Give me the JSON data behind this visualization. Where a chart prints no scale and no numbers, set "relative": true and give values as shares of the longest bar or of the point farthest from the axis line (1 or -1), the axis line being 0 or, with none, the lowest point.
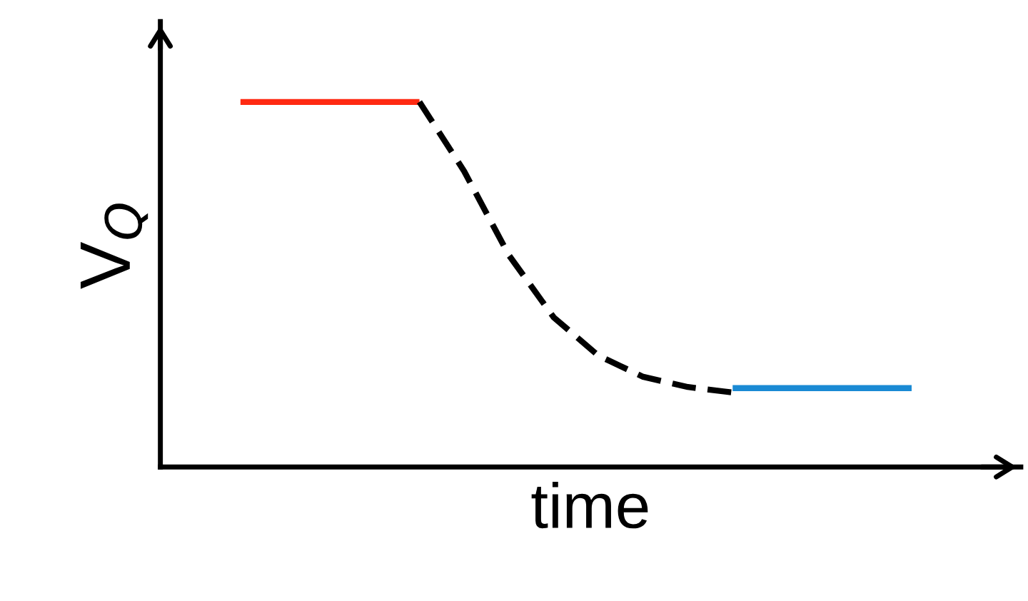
{
  "chart_data": {
    "type": "line",
    "xlabel": "time",
    "ylabel": "V$_{Q}$",
    "relative": true,
    "legend": false,
    "marker": "none",
    "categories": [
      null,
      null,
      null,
      null,
      null,
      null,
      null,
      null,
      null,
      null,
      null,
      null,
      null,
      null,
      null,
      null
    ],
    "series": [
      {
        "color": "#ff2a12",
        "line_style": "solid",
        "values": [
          1,
          1,
          1,
          1,
          1,
          null,
          null,
          null,
          null,
          null,
          null,
          null,
          null,
          null,
          null,
          null
        ]
      },
      {
        "color": "#000000",
        "line_style": "dashed",
        "values": [
          null,
          null,
          null,
          null,
          1,
          0.81,
          0.58,
          0.41,
          0.305,
          0.247,
          0.219,
          0.204,
          null,
          null,
          null,
          null
        ]
      },
      {
        "color": "#1a8ad4",
        "line_style": "solid",
        "values": [
          null,
          null,
          null,
          null,
          null,
          null,
          null,
          null,
          null,
          null,
          null,
          0.216,
          0.216,
          0.216,
          0.216,
          0.216
        ]
      }
    ]
  }
}
